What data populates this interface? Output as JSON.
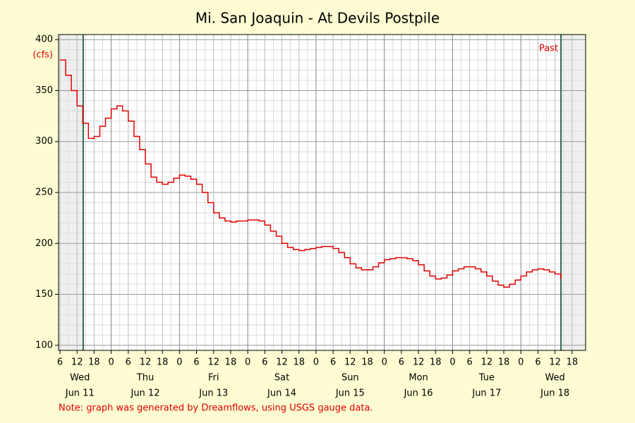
{
  "chart_data": {
    "type": "line",
    "title": "Mi. San Joaquin - At Devils Postpile",
    "y_label": "(cfs)",
    "annotation": "Past",
    "note": "Note: graph was generated by Dreamflows, using USGS gauge data.",
    "color": "#e00000",
    "marker_color": "#2e6b4f",
    "markers": [
      "Jun 11 14:10",
      "Jun 18 14:05"
    ],
    "grid": true,
    "ylim": [
      95,
      405
    ],
    "yticks": [
      100,
      150,
      200,
      250,
      300,
      350,
      400
    ],
    "xlim": [
      "Jun 11 05:30",
      "Jun 18 22:45"
    ],
    "xticks": [
      {
        "value": "Jun 11 06:00",
        "label": "6"
      },
      {
        "value": "Jun 11 12:00",
        "label": "12"
      },
      {
        "value": "Jun 11 18:00",
        "label": "18"
      },
      {
        "value": "Jun 12 00:00",
        "label": "0"
      },
      {
        "value": "Jun 12 06:00",
        "label": "6"
      },
      {
        "value": "Jun 12 12:00",
        "label": "12"
      },
      {
        "value": "Jun 12 18:00",
        "label": "18"
      },
      {
        "value": "Jun 13 00:00",
        "label": "0"
      },
      {
        "value": "Jun 13 06:00",
        "label": "6"
      },
      {
        "value": "Jun 13 12:00",
        "label": "12"
      },
      {
        "value": "Jun 13 18:00",
        "label": "18"
      },
      {
        "value": "Jun 14 00:00",
        "label": "0"
      },
      {
        "value": "Jun 14 06:00",
        "label": "6"
      },
      {
        "value": "Jun 14 12:00",
        "label": "12"
      },
      {
        "value": "Jun 14 18:00",
        "label": "18"
      },
      {
        "value": "Jun 15 00:00",
        "label": "0"
      },
      {
        "value": "Jun 15 06:00",
        "label": "6"
      },
      {
        "value": "Jun 15 12:00",
        "label": "12"
      },
      {
        "value": "Jun 15 18:00",
        "label": "18"
      },
      {
        "value": "Jun 16 00:00",
        "label": "0"
      },
      {
        "value": "Jun 16 06:00",
        "label": "6"
      },
      {
        "value": "Jun 16 12:00",
        "label": "12"
      },
      {
        "value": "Jun 16 18:00",
        "label": "18"
      },
      {
        "value": "Jun 17 00:00",
        "label": "0"
      },
      {
        "value": "Jun 17 06:00",
        "label": "6"
      },
      {
        "value": "Jun 17 12:00",
        "label": "12"
      },
      {
        "value": "Jun 17 18:00",
        "label": "18"
      },
      {
        "value": "Jun 18 00:00",
        "label": "0"
      },
      {
        "value": "Jun 18 06:00",
        "label": "6"
      },
      {
        "value": "Jun 18 12:00",
        "label": "12"
      },
      {
        "value": "Jun 18 18:00",
        "label": "18"
      }
    ],
    "day_labels": [
      {
        "at": "Jun 11 13:00",
        "weekday": "Wed",
        "date": "Jun 11"
      },
      {
        "at": "Jun 12 12:00",
        "weekday": "Thu",
        "date": "Jun 12"
      },
      {
        "at": "Jun 13 12:00",
        "weekday": "Fri",
        "date": "Jun 13"
      },
      {
        "at": "Jun 14 12:00",
        "weekday": "Sat",
        "date": "Jun 14"
      },
      {
        "at": "Jun 15 12:00",
        "weekday": "Sun",
        "date": "Jun 15"
      },
      {
        "at": "Jun 16 12:00",
        "weekday": "Mon",
        "date": "Jun 16"
      },
      {
        "at": "Jun 17 12:00",
        "weekday": "Tue",
        "date": "Jun 17"
      },
      {
        "at": "Jun 18 12:00",
        "weekday": "Wed",
        "date": "Jun 18"
      }
    ],
    "x": [
      "Jun 11 06:00",
      "Jun 11 08:00",
      "Jun 11 10:00",
      "Jun 11 12:00",
      "Jun 11 14:00",
      "Jun 11 16:00",
      "Jun 11 18:00",
      "Jun 11 20:00",
      "Jun 11 22:00",
      "Jun 12 00:00",
      "Jun 12 02:00",
      "Jun 12 04:00",
      "Jun 12 06:00",
      "Jun 12 08:00",
      "Jun 12 10:00",
      "Jun 12 12:00",
      "Jun 12 14:00",
      "Jun 12 16:00",
      "Jun 12 18:00",
      "Jun 12 20:00",
      "Jun 12 22:00",
      "Jun 13 00:00",
      "Jun 13 02:00",
      "Jun 13 04:00",
      "Jun 13 06:00",
      "Jun 13 08:00",
      "Jun 13 10:00",
      "Jun 13 12:00",
      "Jun 13 14:00",
      "Jun 13 16:00",
      "Jun 13 18:00",
      "Jun 13 20:00",
      "Jun 13 22:00",
      "Jun 14 00:00",
      "Jun 14 02:00",
      "Jun 14 04:00",
      "Jun 14 06:00",
      "Jun 14 08:00",
      "Jun 14 10:00",
      "Jun 14 12:00",
      "Jun 14 14:00",
      "Jun 14 16:00",
      "Jun 14 18:00",
      "Jun 14 20:00",
      "Jun 14 22:00",
      "Jun 15 00:00",
      "Jun 15 02:00",
      "Jun 15 04:00",
      "Jun 15 06:00",
      "Jun 15 08:00",
      "Jun 15 10:00",
      "Jun 15 12:00",
      "Jun 15 14:00",
      "Jun 15 16:00",
      "Jun 15 18:00",
      "Jun 15 20:00",
      "Jun 15 22:00",
      "Jun 16 00:00",
      "Jun 16 02:00",
      "Jun 16 04:00",
      "Jun 16 06:00",
      "Jun 16 08:00",
      "Jun 16 10:00",
      "Jun 16 12:00",
      "Jun 16 14:00",
      "Jun 16 16:00",
      "Jun 16 18:00",
      "Jun 16 20:00",
      "Jun 16 22:00",
      "Jun 17 00:00",
      "Jun 17 02:00",
      "Jun 17 04:00",
      "Jun 17 06:00",
      "Jun 17 08:00",
      "Jun 17 10:00",
      "Jun 17 12:00",
      "Jun 17 14:00",
      "Jun 17 16:00",
      "Jun 17 18:00",
      "Jun 17 20:00",
      "Jun 17 22:00",
      "Jun 18 00:00",
      "Jun 18 02:00",
      "Jun 18 04:00",
      "Jun 18 06:00",
      "Jun 18 08:00",
      "Jun 18 10:00",
      "Jun 18 12:00",
      "Jun 18 14:00"
    ],
    "values": [
      380,
      365,
      350,
      335,
      318,
      303,
      305,
      315,
      323,
      332,
      335,
      330,
      320,
      305,
      292,
      278,
      265,
      260,
      258,
      260,
      264,
      267,
      266,
      263,
      258,
      250,
      240,
      230,
      225,
      222,
      221,
      222,
      222,
      223,
      223,
      222,
      218,
      212,
      207,
      200,
      196,
      194,
      193,
      194,
      195,
      196,
      197,
      197,
      195,
      191,
      186,
      180,
      176,
      174,
      174,
      177,
      181,
      184,
      185,
      186,
      186,
      185,
      183,
      179,
      173,
      168,
      165,
      166,
      169,
      173,
      175,
      177,
      177,
      175,
      172,
      168,
      163,
      159,
      157,
      160,
      164,
      168,
      172,
      174,
      175,
      174,
      172,
      170,
      165
    ]
  }
}
